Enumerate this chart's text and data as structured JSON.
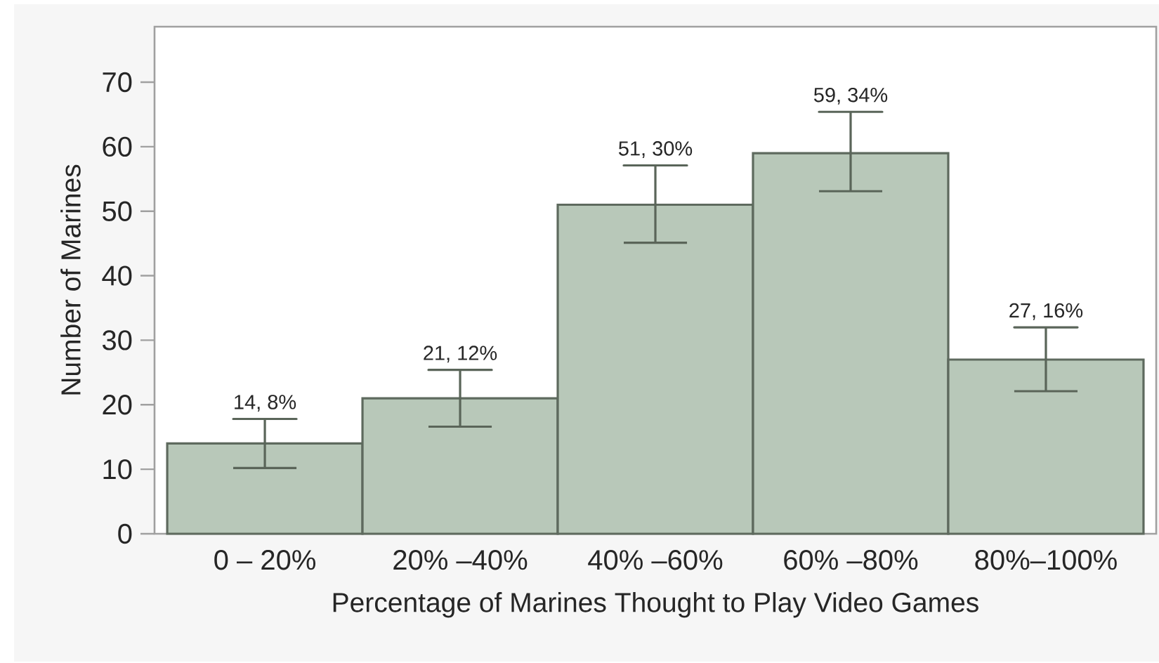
{
  "chart_data": {
    "type": "bar",
    "xlabel": "Percentage of Marines Thought to Play Video Games",
    "ylabel": "Number of Marines",
    "categories": [
      "0 – 20%",
      "20% –40%",
      "40% –60%",
      "60% –80%",
      "80%–100%"
    ],
    "values": [
      14,
      21,
      51,
      59,
      27
    ],
    "errors": [
      [
        10.2,
        17.8
      ],
      [
        16.6,
        25.4
      ],
      [
        45.1,
        57.1
      ],
      [
        53.1,
        65.4
      ],
      [
        22.1,
        32.0
      ]
    ],
    "value_labels": [
      "14, 8%",
      "21, 12%",
      "51, 30%",
      "59, 34%",
      "27, 16%"
    ],
    "color": "#b8c8b9",
    "ylim": [
      0,
      78.6
    ],
    "yticks": [
      0,
      10,
      20,
      30,
      40,
      50,
      60,
      70
    ]
  }
}
